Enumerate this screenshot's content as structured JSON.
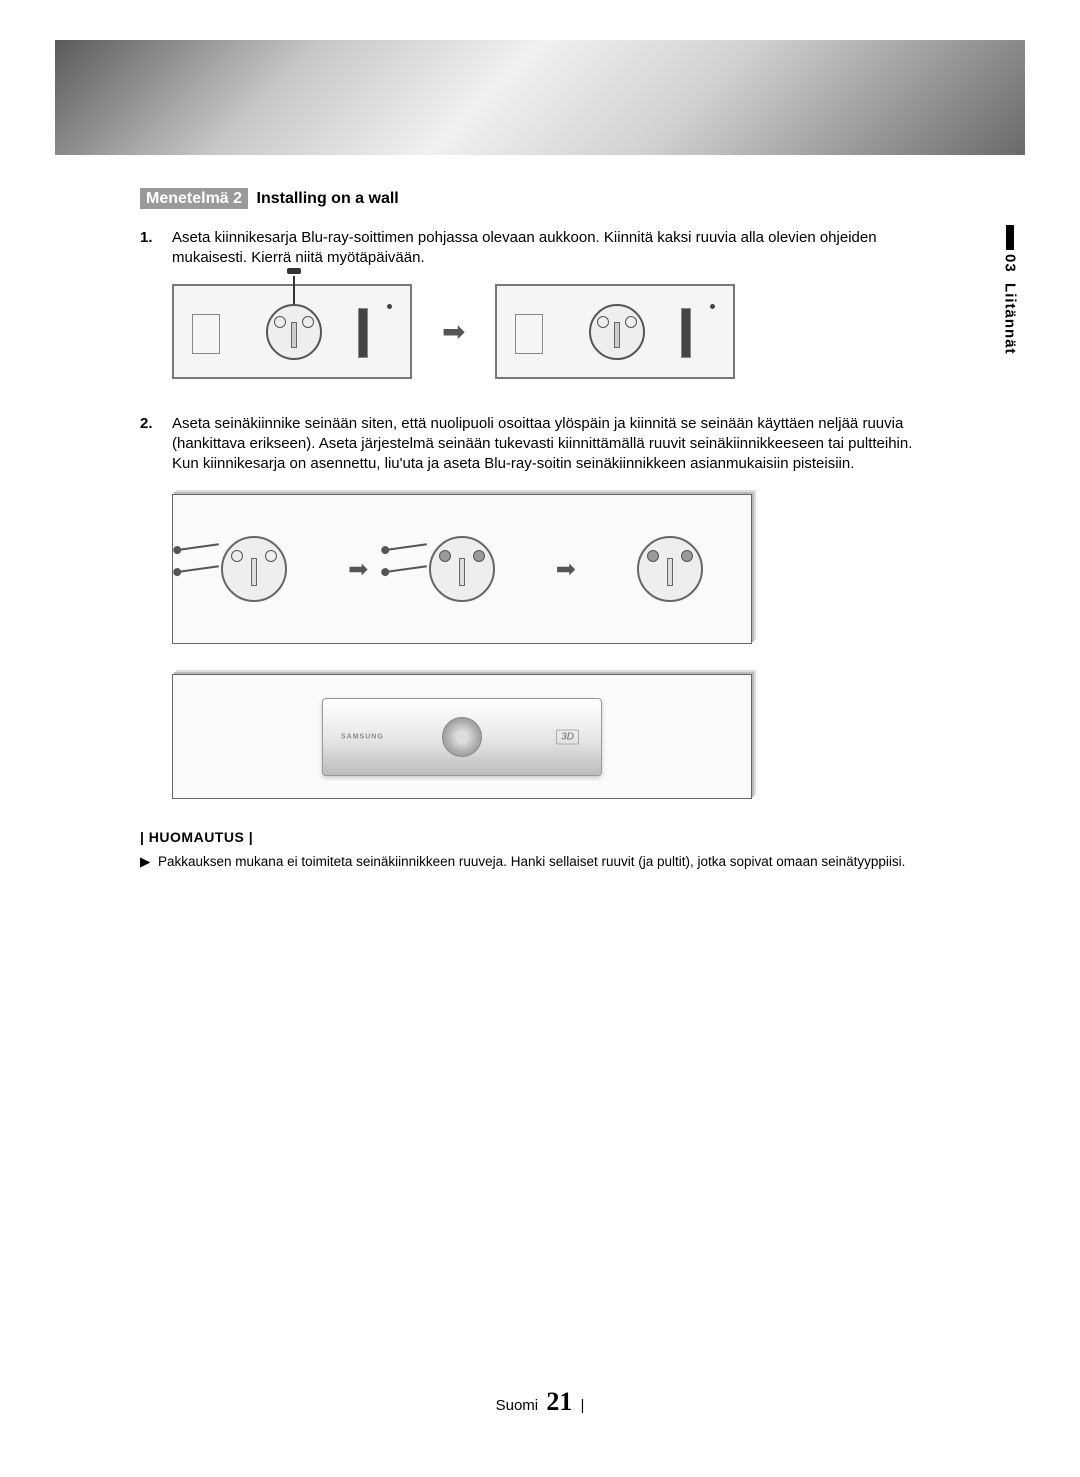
{
  "colors": {
    "badge_bg": "#9a9a9a",
    "badge_text": "#ffffff",
    "text": "#000000",
    "border": "#666666",
    "panel_bg": "#f5f5f5",
    "arrow": "#555555"
  },
  "side_tab": {
    "number": "03",
    "label": "Liitännät"
  },
  "heading": {
    "badge": "Menetelmä 2",
    "title": "Installing on a wall"
  },
  "steps": [
    {
      "num": "1.",
      "text": "Aseta kiinnikesarja Blu-ray-soittimen pohjassa olevaan aukkoon. Kiinnitä kaksi ruuvia alla olevien ohjeiden mukaisesti. Kierrä niitä myötäpäivään."
    },
    {
      "num": "2.",
      "text": "Aseta seinäkiinnike seinään siten, että nuolipuoli osoittaa ylöspäin ja kiinnitä se seinään käyttäen neljää ruuvia (hankittava erikseen). Aseta järjestelmä seinään tukevasti kiinnittämällä ruuvit seinäkiinnikkeeseen tai pultteihin.\nKun kiinnikesarja on asennettu, liu'uta ja aseta Blu-ray-soitin seinäkiinnikkeen asianmukaisiin pisteisiin."
    }
  ],
  "note": {
    "heading": "| HUOMAUTUS |",
    "bullet": "▶",
    "text": "Pakkauksen mukana ei toimiteta seinäkiinnikkeen ruuveja. Hanki sellaiset ruuvit (ja pultit), jotka sopivat omaan seinätyyppiisi."
  },
  "product": {
    "brand": "SAMSUNG",
    "badge": "3D"
  },
  "arrow_glyph": "➡",
  "footer": {
    "lang": "Suomi",
    "page": "21",
    "sep": "|"
  }
}
